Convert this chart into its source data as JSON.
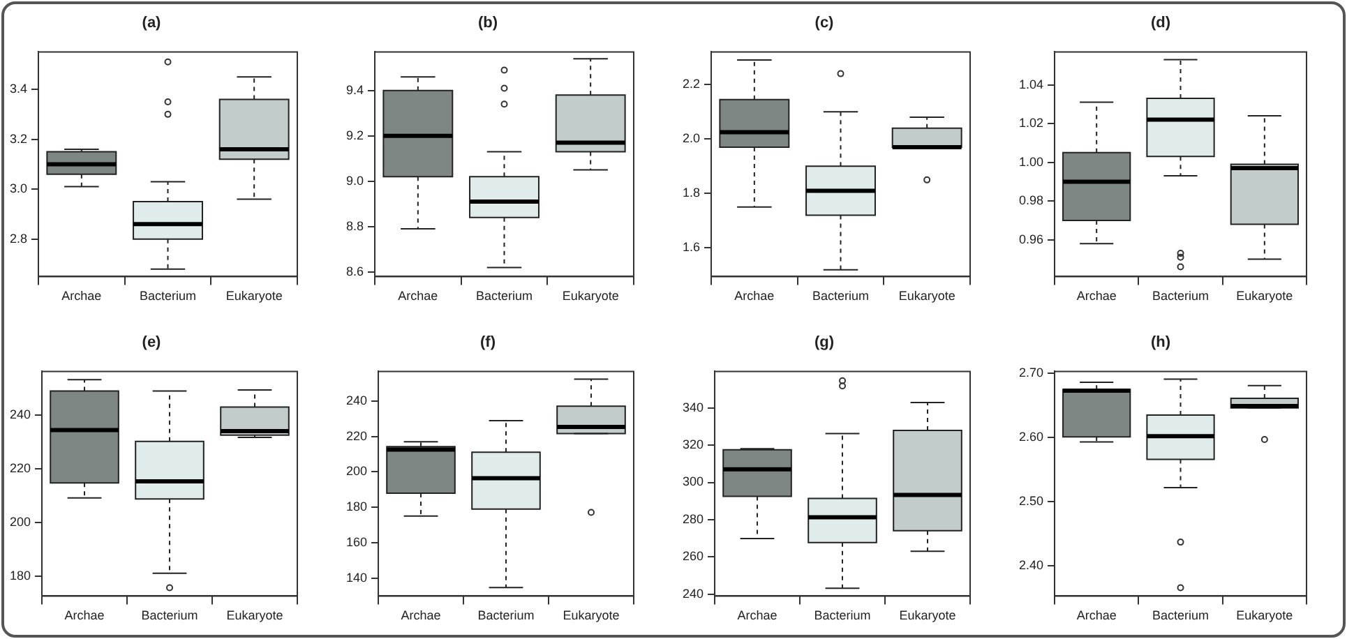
{
  "chart_data": [
    {
      "type": "box",
      "title": "(a)",
      "categories": [
        "Archae",
        "Bacterium",
        "Eukaryote"
      ],
      "colors": [
        "#7f8784",
        "#e0ebeb",
        "#c2cccb"
      ],
      "ylim": [
        2.65,
        3.55
      ],
      "yticks": [
        2.8,
        {
          "value": 3.0,
          "label": "3.0"
        },
        3.2,
        3.4
      ],
      "grid": false,
      "legend": false,
      "boxes": [
        {
          "low": 3.01,
          "q1": 3.06,
          "median": 3.1,
          "q3": 3.15,
          "high": 3.16
        },
        {
          "low": 2.68,
          "q1": 2.8,
          "median": 2.86,
          "q3": 2.95,
          "high": 3.03,
          "outliers": [
            3.51,
            3.35,
            3.3
          ]
        },
        {
          "low": 2.96,
          "q1": 3.12,
          "median": 3.16,
          "q3": 3.36,
          "high": 3.45
        }
      ]
    },
    {
      "type": "box",
      "title": "(b)",
      "categories": [
        "Archae",
        "Bacterium",
        "Eukaryote"
      ],
      "colors": [
        "#7f8784",
        "#e0ebeb",
        "#c2cccb"
      ],
      "ylim": [
        8.58,
        9.57
      ],
      "yticks": [
        8.6,
        8.8,
        {
          "value": 9.0,
          "label": "9.0"
        },
        9.2,
        9.4
      ],
      "grid": false,
      "legend": false,
      "boxes": [
        {
          "low": 8.79,
          "q1": 9.02,
          "median": 9.2,
          "q3": 9.4,
          "high": 9.46
        },
        {
          "low": 8.62,
          "q1": 8.84,
          "median": 8.91,
          "q3": 9.02,
          "high": 9.13,
          "outliers": [
            9.49,
            9.41,
            9.34
          ]
        },
        {
          "low": 9.05,
          "q1": 9.13,
          "median": 9.17,
          "q3": 9.38,
          "high": 9.54
        }
      ]
    },
    {
      "type": "box",
      "title": "(c)",
      "categories": [
        "Archae",
        "Bacterium",
        "Eukaryote"
      ],
      "colors": [
        "#7f8784",
        "#e0ebeb",
        "#c2cccb"
      ],
      "ylim": [
        1.495,
        2.32
      ],
      "yticks": [
        1.6,
        1.8,
        {
          "value": 2.0,
          "label": "2.0"
        },
        2.2
      ],
      "grid": false,
      "legend": false,
      "boxes": [
        {
          "low": 1.75,
          "q1": 1.97,
          "median": 2.025,
          "q3": 2.145,
          "high": 2.29
        },
        {
          "low": 1.52,
          "q1": 1.72,
          "median": 1.81,
          "q3": 1.9,
          "high": 2.1,
          "outliers": [
            2.24
          ]
        },
        {
          "low": 1.97,
          "q1": 1.97,
          "median": 1.97,
          "q3": 2.04,
          "high": 2.08,
          "outliers": [
            1.85
          ]
        }
      ]
    },
    {
      "type": "box",
      "title": "(d)",
      "categories": [
        "Archae",
        "Bacterium",
        "Eukaryote"
      ],
      "colors": [
        "#7f8784",
        "#e0ebeb",
        "#c2cccb"
      ],
      "ylim": [
        0.941,
        1.057
      ],
      "yticks": [
        0.96,
        0.98,
        {
          "value": 1.0,
          "label": "1.00"
        },
        1.02,
        1.04
      ],
      "grid": false,
      "legend": false,
      "boxes": [
        {
          "low": 0.958,
          "q1": 0.97,
          "median": 0.99,
          "q3": 1.005,
          "high": 1.031
        },
        {
          "low": 0.993,
          "q1": 1.003,
          "median": 1.022,
          "q3": 1.033,
          "high": 1.053,
          "outliers": [
            0.953,
            0.951,
            0.946
          ]
        },
        {
          "low": 0.95,
          "q1": 0.968,
          "median": 0.997,
          "q3": 0.999,
          "high": 1.024
        }
      ]
    },
    {
      "type": "box",
      "title": "(e)",
      "categories": [
        "Archae",
        "Bacterium",
        "Eukaryote"
      ],
      "colors": [
        "#7f8784",
        "#e0ebeb",
        "#c2cccb"
      ],
      "ylim": [
        172.5,
        256.3
      ],
      "yticks": [
        180,
        200,
        220,
        240
      ],
      "grid": false,
      "legend": false,
      "boxes": [
        {
          "low": 209.1,
          "q1": 214.7,
          "median": 234.4,
          "q3": 249,
          "high": 253.2
        },
        {
          "low": 181,
          "q1": 208.7,
          "median": 215.3,
          "q3": 230.2,
          "high": 249,
          "outliers": [
            175.6
          ]
        },
        {
          "low": 231.7,
          "q1": 232.5,
          "median": 234,
          "q3": 243,
          "high": 249.4
        }
      ]
    },
    {
      "type": "box",
      "title": "(f)",
      "categories": [
        "Archae",
        "Bacterium",
        "Eukaryote"
      ],
      "colors": [
        "#7f8784",
        "#e0ebeb",
        "#c2cccb"
      ],
      "ylim": [
        130,
        256.7
      ],
      "yticks": [
        140,
        160,
        180,
        200,
        220,
        240
      ],
      "grid": false,
      "legend": false,
      "boxes": [
        {
          "low": 175.1,
          "q1": 188,
          "median": 212.6,
          "q3": 214.3,
          "high": 217
        },
        {
          "low": 134.8,
          "q1": 179,
          "median": 196.5,
          "q3": 211.1,
          "high": 228.9
        },
        {
          "low": 221.6,
          "q1": 221.6,
          "median": 225.4,
          "q3": 237.1,
          "high": 252.3,
          "outliers": [
            177.2
          ]
        }
      ]
    },
    {
      "type": "box",
      "title": "(g)",
      "categories": [
        "Archae",
        "Bacterium",
        "Eukaryote"
      ],
      "colors": [
        "#7f8784",
        "#e0ebeb",
        "#c2cccb"
      ],
      "ylim": [
        239,
        359.6
      ],
      "yticks": [
        240,
        260,
        280,
        300,
        320,
        340
      ],
      "grid": false,
      "legend": false,
      "boxes": [
        {
          "low": 269.9,
          "q1": 292.5,
          "median": 307,
          "q3": 317.5,
          "high": 318.1
        },
        {
          "low": 243.2,
          "q1": 267.7,
          "median": 281.3,
          "q3": 291.4,
          "high": 326.2,
          "outliers": [
            354.6,
            351.8
          ]
        },
        {
          "low": 263,
          "q1": 274.1,
          "median": 293.3,
          "q3": 327.9,
          "high": 342.9
        }
      ]
    },
    {
      "type": "box",
      "title": "(h)",
      "categories": [
        "Archae",
        "Bacterium",
        "Eukaryote"
      ],
      "colors": [
        "#7f8784",
        "#e0ebeb",
        "#c2cccb"
      ],
      "ylim": [
        2.353,
        2.703
      ],
      "yticks": [
        {
          "value": 2.4,
          "label": "2.40"
        },
        {
          "value": 2.5,
          "label": "2.50"
        },
        {
          "value": 2.6,
          "label": "2.60"
        },
        {
          "value": 2.7,
          "label": "2.70"
        }
      ],
      "grid": false,
      "legend": false,
      "boxes": [
        {
          "low": 2.593,
          "q1": 2.601,
          "median": 2.673,
          "q3": 2.675,
          "high": 2.686
        },
        {
          "low": 2.522,
          "q1": 2.566,
          "median": 2.602,
          "q3": 2.635,
          "high": 2.691,
          "outliers": [
            2.437,
            2.366
          ]
        },
        {
          "low": 2.646,
          "q1": 2.646,
          "median": 2.649,
          "q3": 2.661,
          "high": 2.681,
          "outliers": [
            2.597
          ]
        }
      ]
    }
  ]
}
